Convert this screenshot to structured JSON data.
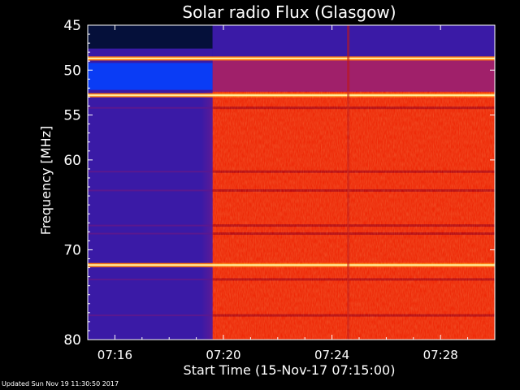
{
  "chart_data": {
    "type": "heatmap",
    "title": "Solar radio Flux (Glasgow)",
    "xlabel": "Start Time (15-Nov-17 07:15:00)",
    "ylabel": "Frequency [MHz]",
    "x_range_min": [
      15.0,
      30.0
    ],
    "y_range_mhz": [
      45,
      80
    ],
    "y_scale": "linear-inverted",
    "x_ticks": [
      {
        "min": 16,
        "label": "07:16"
      },
      {
        "min": 20,
        "label": "07:20"
      },
      {
        "min": 24,
        "label": "07:24"
      },
      {
        "min": 28,
        "label": "07:28"
      }
    ],
    "y_ticks": [
      {
        "mhz": 45,
        "label": "45"
      },
      {
        "mhz": 50,
        "label": "50"
      },
      {
        "mhz": 55,
        "label": "55"
      },
      {
        "mhz": 60,
        "label": "60"
      },
      {
        "mhz": 70,
        "label": "70"
      },
      {
        "mhz": 80,
        "label": "80"
      }
    ],
    "colors": {
      "background_low": "#2a12a8",
      "quiet_band": "#3a1aa6",
      "dark_region": "#05103a",
      "bright_blue": "#0a3cf5",
      "high_flux": "#ee2a08",
      "saturated": "#fff0a0"
    },
    "regions": [
      {
        "name": "quiet-pre-event",
        "t": [
          15.0,
          19.6
        ],
        "mhz": [
          45,
          80
        ],
        "color": "#3a1aa6"
      },
      {
        "name": "dark-low-flux",
        "t": [
          15.0,
          19.6
        ],
        "mhz": [
          45,
          47.6
        ],
        "color": "#05103a"
      },
      {
        "name": "blue-band",
        "t": [
          15.0,
          19.6
        ],
        "mhz": [
          49.2,
          52.2
        ],
        "color": "#0a3cf5"
      },
      {
        "name": "post-onset-low-freq",
        "t": [
          19.6,
          30.0
        ],
        "mhz": [
          45,
          48.6
        ],
        "color": "#3a1aa6"
      },
      {
        "name": "post-onset-mid",
        "t": [
          19.6,
          30.0
        ],
        "mhz": [
          48.6,
          52.4
        ],
        "color": "#a0206a"
      },
      {
        "name": "post-onset-high-flux",
        "t": [
          19.6,
          30.0
        ],
        "mhz": [
          52.4,
          80
        ],
        "color": "#ee2a08"
      }
    ],
    "bright_lines_mhz": [
      48.7,
      52.8,
      71.7
    ],
    "interference_lines_mhz": [
      54.2,
      61.3,
      63.4,
      67.3,
      68.2,
      73.3,
      77.3
    ],
    "event_onset_min": 19.6,
    "vertical_spike_min": 24.6
  },
  "footer": "Updated Sun Nov 19 11:30:50 2017"
}
